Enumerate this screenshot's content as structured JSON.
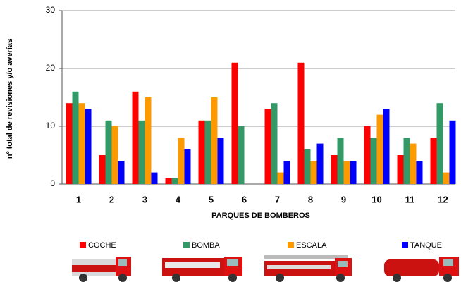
{
  "chart_data": {
    "type": "bar",
    "y_label": "nº total de revisiones y/o averías",
    "x_label": "PARQUES DE BOMBEROS",
    "categories": [
      "1",
      "2",
      "3",
      "4",
      "5",
      "6",
      "7",
      "8",
      "9",
      "10",
      "11",
      "12"
    ],
    "series": [
      {
        "name": "COCHE",
        "color": "#ff0000",
        "values": [
          14,
          5,
          16,
          1,
          11,
          21,
          13,
          21,
          5,
          10,
          5,
          8
        ]
      },
      {
        "name": "BOMBA",
        "color": "#339966",
        "values": [
          16,
          11,
          11,
          1,
          11,
          10,
          14,
          6,
          8,
          8,
          8,
          14
        ]
      },
      {
        "name": "ESCALA",
        "color": "#ff9900",
        "values": [
          14,
          10,
          15,
          8,
          15,
          0,
          2,
          4,
          4,
          12,
          7,
          2
        ]
      },
      {
        "name": "TANQUE",
        "color": "#0000ff",
        "values": [
          13,
          4,
          2,
          6,
          8,
          0,
          4,
          7,
          4,
          13,
          4,
          11
        ]
      }
    ],
    "ylim": [
      0,
      30
    ],
    "yticks": [
      0,
      10,
      20,
      30
    ],
    "grid": true
  }
}
